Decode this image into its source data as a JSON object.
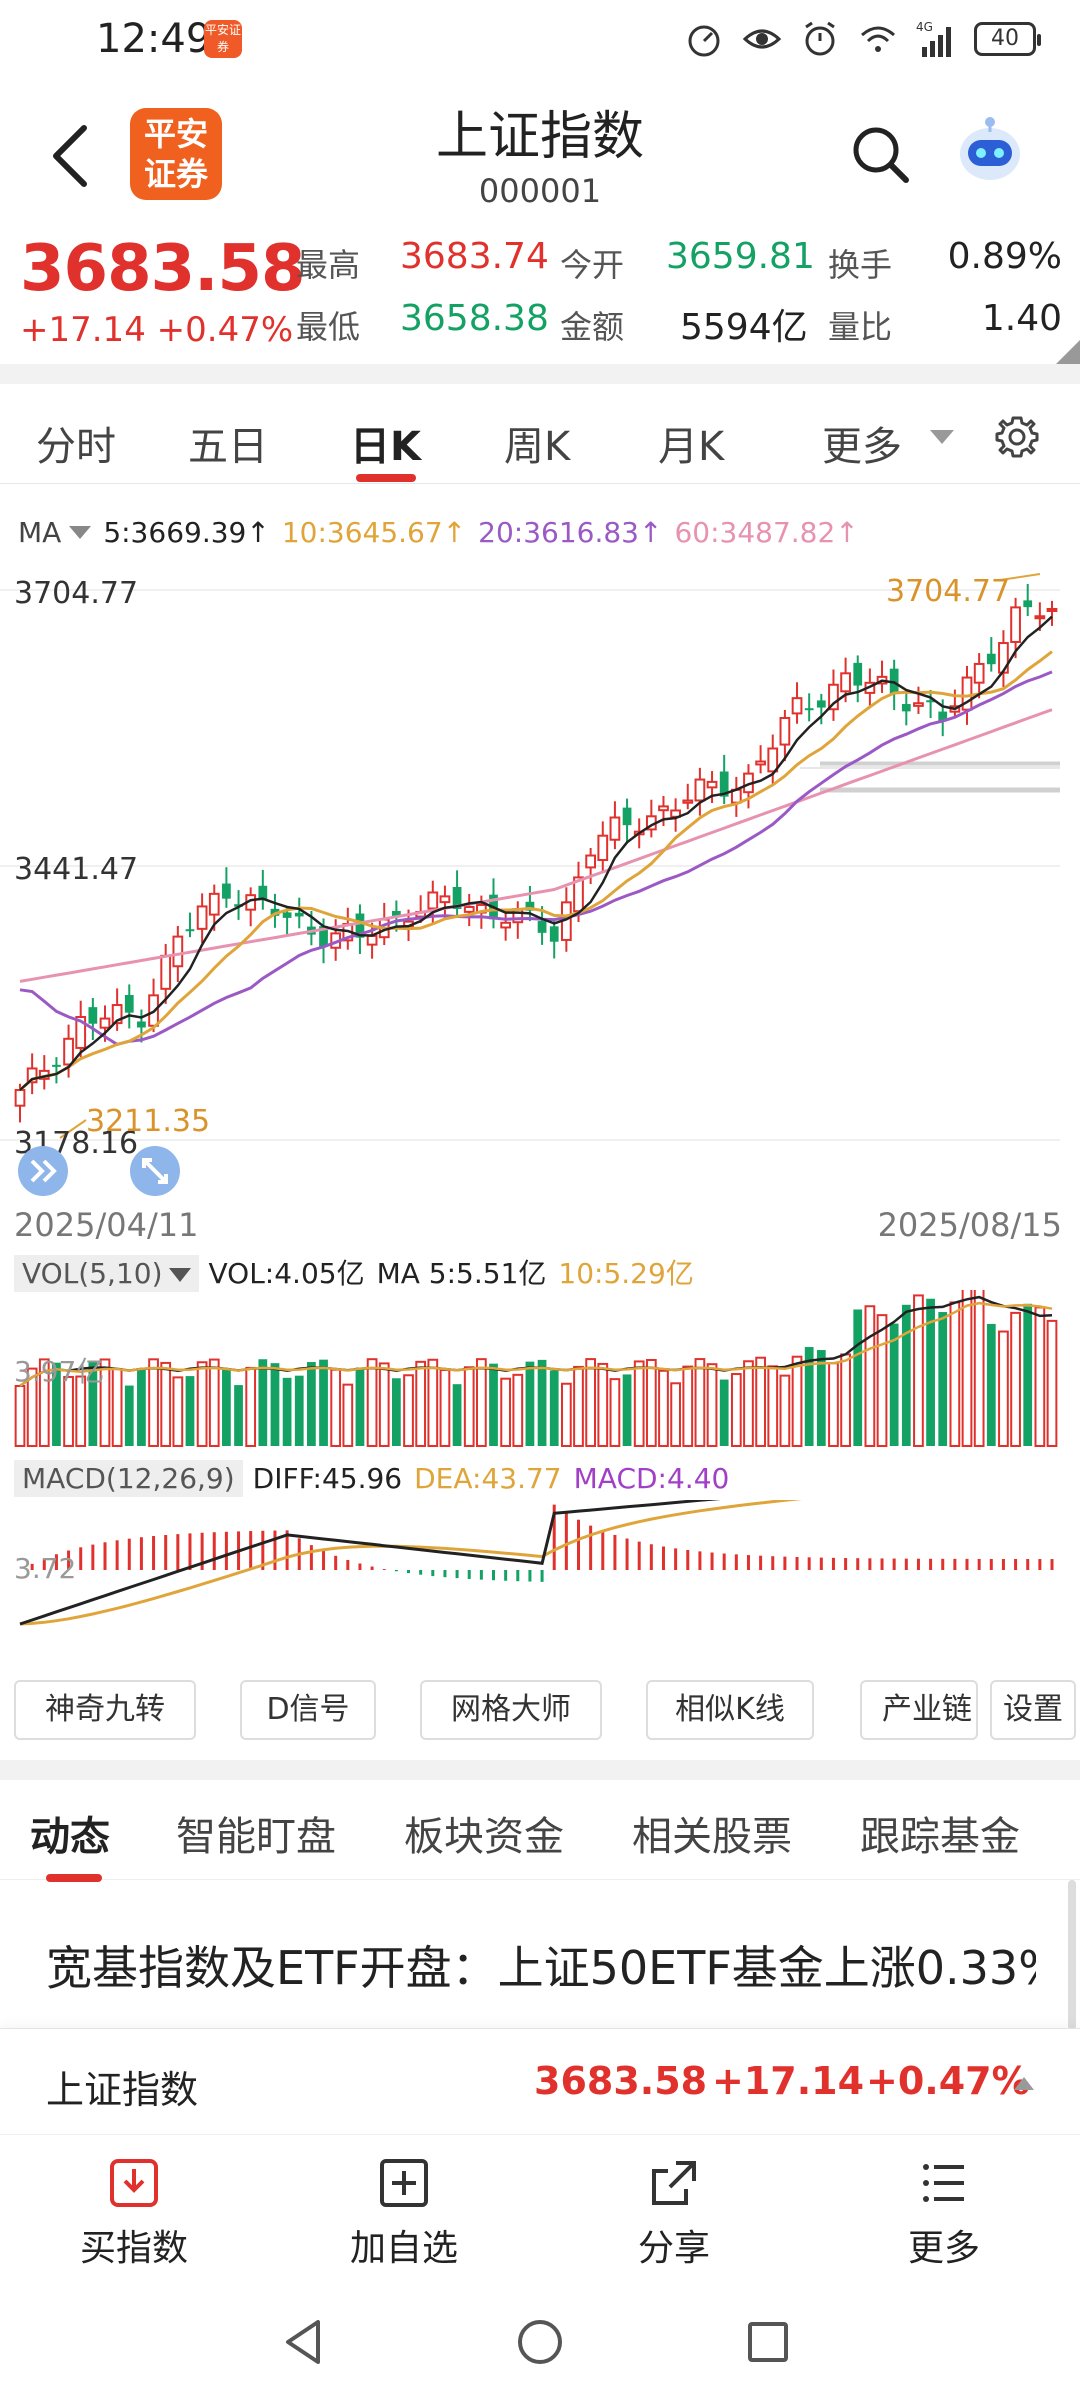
{
  "status": {
    "time": "12:49",
    "app_badge": "平安证券",
    "network": "4G",
    "battery": "40"
  },
  "header": {
    "title": "上证指数",
    "code": "000001",
    "logo_text": "平安证券"
  },
  "quote": {
    "price": "3683.58",
    "change": "+17.14",
    "change_pct": "+0.47%",
    "high_label": "最高",
    "high": "3683.74",
    "low_label": "最低",
    "low": "3658.38",
    "open_label": "今开",
    "open": "3659.81",
    "amount_label": "金额",
    "amount": "5594亿",
    "turnover_label": "换手",
    "turnover": "0.89%",
    "vol_ratio_label": "量比",
    "vol_ratio": "1.40"
  },
  "period_tabs": [
    "分时",
    "五日",
    "日K",
    "周K",
    "月K",
    "更多"
  ],
  "ma_legend": {
    "label": "MA",
    "ma5": "5:3669.39↑",
    "ma10": "10:3645.67↑",
    "ma20": "20:3616.83↑",
    "ma60": "60:3487.82↑"
  },
  "kline": {
    "axis_top": "3704.77",
    "axis_mid": "3441.47",
    "axis_bot": "3178.16",
    "max_label": "3704.77",
    "min_label": "3211.35",
    "date_start": "2025/04/11",
    "date_end": "2025/08/15"
  },
  "volume": {
    "box_label": "VOL(5,10)",
    "vol": "VOL:4.05亿",
    "ma5": "MA 5:5.51亿",
    "ma10": "10:5.29亿",
    "axis": "3.97亿"
  },
  "macd": {
    "box_label": "MACD(12,26,9)",
    "diff": "DIFF:45.96",
    "dea": "DEA:43.77",
    "macd": "MACD:4.40",
    "axis": "3.72"
  },
  "tools": [
    "神奇九转",
    "D信号",
    "网格大师",
    "相似K线",
    "产业链",
    "设置"
  ],
  "news_tabs": [
    "动态",
    "智能盯盘",
    "板块资金",
    "相关股票",
    "跟踪基金"
  ],
  "headline": "宽基指数及ETF开盘：上证50ETF基金上涨0.33%",
  "ticker": {
    "name": "上证指数",
    "price": "3683.58",
    "change": "+17.14",
    "pct": "+0.47%"
  },
  "actions": [
    "买指数",
    "加自选",
    "分享",
    "更多"
  ],
  "colors": {
    "up": "#e0312d",
    "down": "#13a164",
    "ma5": "#222222",
    "ma10": "#e0a53a",
    "ma20": "#9b59c6",
    "ma60": "#e792b0"
  }
}
